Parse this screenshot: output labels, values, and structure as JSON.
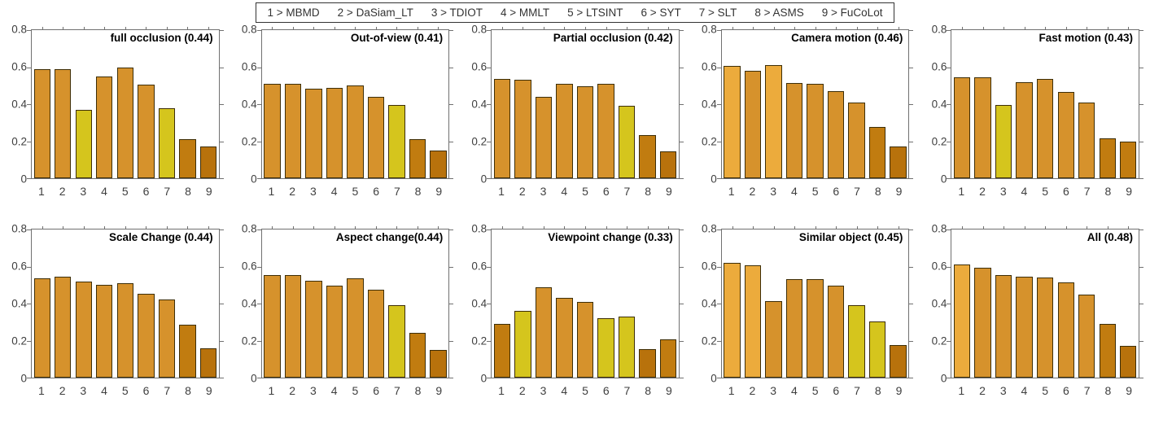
{
  "figure": {
    "rows": 2,
    "cols": 5,
    "background": "#ffffff",
    "legend_position": "top"
  },
  "legend": {
    "items": [
      "1 > MBMD",
      "2 > DaSiam_LT",
      "3 > TDIOT",
      "4 > MMLT",
      "5 > LTSINT",
      "6 > SYT",
      "7 > SLT",
      "8 > ASMS",
      "9 > FuCoLot"
    ],
    "trackers": [
      {
        "rank": "1",
        "name": "MBMD"
      },
      {
        "rank": "2",
        "name": "DaSiam_LT"
      },
      {
        "rank": "3",
        "name": "TDIOT"
      },
      {
        "rank": "4",
        "name": "MMLT"
      },
      {
        "rank": "5",
        "name": "LTSINT"
      },
      {
        "rank": "6",
        "name": "SYT"
      },
      {
        "rank": "7",
        "name": "SLT"
      },
      {
        "rank": "8",
        "name": "ASMS"
      },
      {
        "rank": "9",
        "name": "FuCoLot"
      }
    ]
  },
  "colors": {
    "bar_palette": {
      "golden": "#ecab3c",
      "orange": "#d6922c",
      "yellow": "#d5c51d",
      "ochre": "#c17c10",
      "dark": "#b8720c"
    },
    "color_bins": [
      {
        "gt": 0.6,
        "color": "golden"
      },
      {
        "gte": 0.4,
        "color": "orange"
      },
      {
        "gte": 0.3,
        "color": "yellow"
      },
      {
        "gte": 0.2,
        "color": "ochre"
      },
      {
        "gte": 0.0,
        "color": "dark"
      }
    ],
    "bar_border": "#3d2e08",
    "axis": "#707070",
    "tick_label": "#3f3f3f",
    "title": "#000000",
    "legend_text": "#333333"
  },
  "chart_data": [
    {
      "type": "bar",
      "title": "full occlusion (0.44)",
      "categories": [
        "1",
        "2",
        "3",
        "4",
        "5",
        "6",
        "7",
        "8",
        "9"
      ],
      "values": [
        0.59,
        0.59,
        0.37,
        0.55,
        0.6,
        0.505,
        0.38,
        0.21,
        0.17
      ],
      "ylim": [
        0,
        0.8
      ],
      "yticks": [
        0,
        0.2,
        0.4,
        0.6,
        0.8
      ],
      "grid": false
    },
    {
      "type": "bar",
      "title": "Out-of-view (0.41)",
      "categories": [
        "1",
        "2",
        "3",
        "4",
        "5",
        "6",
        "7",
        "8",
        "9"
      ],
      "values": [
        0.51,
        0.51,
        0.485,
        0.49,
        0.5,
        0.44,
        0.395,
        0.21,
        0.15
      ],
      "ylim": [
        0,
        0.8
      ],
      "yticks": [
        0,
        0.2,
        0.4,
        0.6,
        0.8
      ],
      "grid": false
    },
    {
      "type": "bar",
      "title": "Partial occlusion (0.42)",
      "categories": [
        "1",
        "2",
        "3",
        "4",
        "5",
        "6",
        "7",
        "8",
        "9"
      ],
      "values": [
        0.535,
        0.53,
        0.44,
        0.51,
        0.495,
        0.51,
        0.39,
        0.235,
        0.145
      ],
      "ylim": [
        0,
        0.8
      ],
      "yticks": [
        0,
        0.2,
        0.4,
        0.6,
        0.8
      ],
      "grid": false
    },
    {
      "type": "bar",
      "title": "Camera motion (0.46)",
      "categories": [
        "1",
        "2",
        "3",
        "4",
        "5",
        "6",
        "7",
        "8",
        "9"
      ],
      "values": [
        0.605,
        0.58,
        0.61,
        0.515,
        0.51,
        0.47,
        0.41,
        0.275,
        0.17
      ],
      "ylim": [
        0,
        0.8
      ],
      "yticks": [
        0,
        0.2,
        0.4,
        0.6,
        0.8
      ],
      "grid": false
    },
    {
      "type": "bar",
      "title": "Fast motion (0.43)",
      "categories": [
        "1",
        "2",
        "3",
        "4",
        "5",
        "6",
        "7",
        "8",
        "9"
      ],
      "values": [
        0.545,
        0.545,
        0.395,
        0.52,
        0.535,
        0.465,
        0.41,
        0.215,
        0.2
      ],
      "ylim": [
        0,
        0.8
      ],
      "yticks": [
        0,
        0.2,
        0.4,
        0.6,
        0.8
      ],
      "grid": false
    },
    {
      "type": "bar",
      "title": "Scale Change (0.44)",
      "categories": [
        "1",
        "2",
        "3",
        "4",
        "5",
        "6",
        "7",
        "8",
        "9"
      ],
      "values": [
        0.535,
        0.545,
        0.52,
        0.5,
        0.51,
        0.455,
        0.42,
        0.285,
        0.16
      ],
      "ylim": [
        0,
        0.8
      ],
      "yticks": [
        0,
        0.2,
        0.4,
        0.6,
        0.8
      ],
      "grid": false
    },
    {
      "type": "bar",
      "title": "Aspect change(0.44)",
      "categories": [
        "1",
        "2",
        "3",
        "4",
        "5",
        "6",
        "7",
        "8",
        "9"
      ],
      "values": [
        0.555,
        0.555,
        0.525,
        0.495,
        0.535,
        0.475,
        0.39,
        0.24,
        0.15
      ],
      "ylim": [
        0,
        0.8
      ],
      "yticks": [
        0,
        0.2,
        0.4,
        0.6,
        0.8
      ],
      "grid": false
    },
    {
      "type": "bar",
      "title": "Viewpoint change (0.33)",
      "categories": [
        "1",
        "2",
        "3",
        "4",
        "5",
        "6",
        "7",
        "8",
        "9"
      ],
      "values": [
        0.29,
        0.36,
        0.49,
        0.43,
        0.41,
        0.32,
        0.33,
        0.155,
        0.205
      ],
      "ylim": [
        0,
        0.8
      ],
      "yticks": [
        0,
        0.2,
        0.4,
        0.6,
        0.8
      ],
      "grid": false
    },
    {
      "type": "bar",
      "title": "Similar object (0.45)",
      "categories": [
        "1",
        "2",
        "3",
        "4",
        "5",
        "6",
        "7",
        "8",
        "9"
      ],
      "values": [
        0.62,
        0.605,
        0.415,
        0.53,
        0.53,
        0.495,
        0.39,
        0.305,
        0.175
      ],
      "ylim": [
        0,
        0.8
      ],
      "yticks": [
        0,
        0.2,
        0.4,
        0.6,
        0.8
      ],
      "grid": false
    },
    {
      "type": "bar",
      "title": "All (0.48)",
      "categories": [
        "1",
        "2",
        "3",
        "4",
        "5",
        "6",
        "7",
        "8",
        "9"
      ],
      "values": [
        0.61,
        0.595,
        0.555,
        0.545,
        0.54,
        0.515,
        0.45,
        0.29,
        0.17
      ],
      "ylim": [
        0,
        0.8
      ],
      "yticks": [
        0,
        0.2,
        0.4,
        0.6,
        0.8
      ],
      "grid": false
    }
  ]
}
